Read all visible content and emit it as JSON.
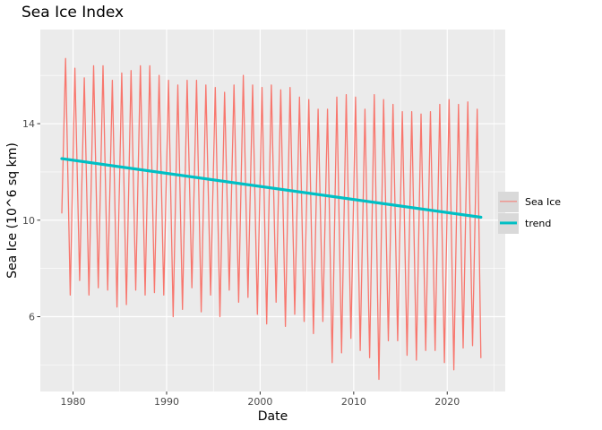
{
  "chart_data": {
    "type": "line",
    "title": "Sea Ice Index",
    "xlabel": "Date",
    "ylabel": "Sea Ice (10^6 sq km)",
    "xlim": [
      1976.5,
      2026.2
    ],
    "ylim": [
      2.9,
      17.9
    ],
    "x_ticks": [
      1980,
      1990,
      2000,
      2010,
      2020
    ],
    "y_ticks": [
      6,
      10,
      14
    ],
    "grid": true,
    "legend_position": "right",
    "series": [
      {
        "name": "Sea Ice",
        "color": "#F8766D",
        "x": [
          1978.8,
          1979.2,
          1979.7,
          1980.2,
          1980.7,
          1981.2,
          1981.7,
          1982.2,
          1982.7,
          1983.2,
          1983.7,
          1984.2,
          1984.7,
          1985.2,
          1985.7,
          1986.2,
          1986.7,
          1987.2,
          1987.7,
          1988.2,
          1988.7,
          1989.2,
          1989.7,
          1990.2,
          1990.7,
          1991.2,
          1991.7,
          1992.2,
          1992.7,
          1993.2,
          1993.7,
          1994.2,
          1994.7,
          1995.2,
          1995.7,
          1996.2,
          1996.7,
          1997.2,
          1997.7,
          1998.2,
          1998.7,
          1999.2,
          1999.7,
          2000.2,
          2000.7,
          2001.2,
          2001.7,
          2002.2,
          2002.7,
          2003.2,
          2003.7,
          2004.2,
          2004.7,
          2005.2,
          2005.7,
          2006.2,
          2006.7,
          2007.2,
          2007.7,
          2008.2,
          2008.7,
          2009.2,
          2009.7,
          2010.2,
          2010.7,
          2011.2,
          2011.7,
          2012.2,
          2012.7,
          2013.2,
          2013.7,
          2014.2,
          2014.7,
          2015.2,
          2015.7,
          2016.2,
          2016.7,
          2017.2,
          2017.7,
          2018.2,
          2018.7,
          2019.2,
          2019.7,
          2020.2,
          2020.7,
          2021.2,
          2021.7,
          2022.2,
          2022.7,
          2023.2,
          2023.6
        ],
        "y": [
          10.3,
          16.7,
          6.9,
          16.3,
          7.5,
          15.9,
          6.9,
          16.4,
          7.2,
          16.4,
          7.1,
          15.8,
          6.4,
          16.1,
          6.5,
          16.2,
          7.1,
          16.4,
          6.9,
          16.4,
          7.0,
          16.0,
          6.9,
          15.8,
          6.0,
          15.6,
          6.3,
          15.8,
          7.2,
          15.8,
          6.2,
          15.6,
          6.9,
          15.5,
          6.0,
          15.3,
          7.1,
          15.6,
          6.6,
          16.0,
          6.8,
          15.6,
          6.1,
          15.5,
          5.7,
          15.6,
          6.6,
          15.4,
          5.6,
          15.5,
          6.1,
          15.1,
          5.8,
          15.0,
          5.3,
          14.6,
          5.8,
          14.6,
          4.1,
          15.1,
          4.5,
          15.2,
          5.1,
          15.1,
          4.6,
          14.6,
          4.3,
          15.2,
          3.4,
          15.0,
          5.0,
          14.8,
          5.0,
          14.5,
          4.4,
          14.5,
          4.2,
          14.4,
          4.6,
          14.5,
          4.6,
          14.8,
          4.1,
          15.0,
          3.8,
          14.8,
          4.7,
          14.9,
          4.8,
          14.6,
          4.3
        ]
      },
      {
        "name": "trend",
        "color": "#00BFC4",
        "x": [
          1978.8,
          2023.6
        ],
        "y": [
          12.55,
          10.12
        ]
      }
    ]
  }
}
